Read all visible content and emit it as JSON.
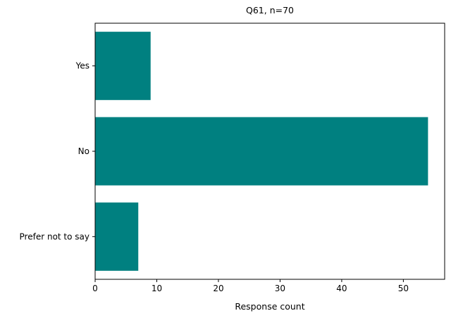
{
  "chart_data": {
    "type": "bar",
    "orientation": "horizontal",
    "title": "Q61, n=70",
    "xlabel": "Response count",
    "ylabel": "",
    "categories": [
      "Yes",
      "No",
      "Prefer not to say"
    ],
    "values": [
      9,
      54,
      7
    ],
    "xlim": [
      0,
      56.7
    ],
    "xticks": [
      0,
      10,
      20,
      30,
      40,
      50
    ],
    "grid": false,
    "bar_color": "#008080"
  }
}
